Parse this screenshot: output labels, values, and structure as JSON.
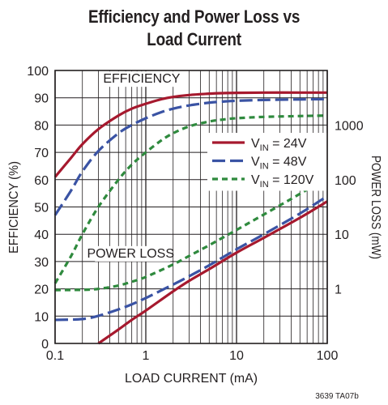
{
  "chart_data": {
    "type": "line",
    "title_line1": "Efficiency and Power Loss vs",
    "title_line2": "Load Current",
    "xlabel": "LOAD CURRENT (mA)",
    "ylabel_left": "EFFICIENCY (%)",
    "ylabel_right": "POWER LOSS (mW)",
    "x_scale": "log",
    "xlim": [
      0.1,
      100
    ],
    "ylim_left": [
      0,
      100
    ],
    "ylim_right_log": [
      0.1,
      10000
    ],
    "x_ticks": [
      {
        "value": 0.1,
        "label": "0.1"
      },
      {
        "value": 1,
        "label": "1"
      },
      {
        "value": 10,
        "label": "10"
      },
      {
        "value": 100,
        "label": "100"
      }
    ],
    "y_ticks_left": [
      0,
      10,
      20,
      30,
      40,
      50,
      60,
      70,
      80,
      90,
      100
    ],
    "y_ticks_right": [
      {
        "value": 1,
        "label": "1"
      },
      {
        "value": 10,
        "label": "10"
      },
      {
        "value": 100,
        "label": "100"
      },
      {
        "value": 1000,
        "label": "1000"
      }
    ],
    "grid": true,
    "annotations": [
      {
        "text": "EFFICIENCY",
        "x": 0.9,
        "y": 95.5,
        "axis": "left"
      },
      {
        "text": "POWER LOSS",
        "x": 0.68,
        "y": 31.5,
        "axis": "left"
      }
    ],
    "legend": {
      "placement": "right",
      "entries": [
        {
          "prefix": "V",
          "sub": "IN",
          "suffix": " = 24V",
          "color": "#a6192e",
          "dash": "solid"
        },
        {
          "prefix": "V",
          "sub": "IN",
          "suffix": " = 48V",
          "color": "#3a53a4",
          "dash": "long-dash"
        },
        {
          "prefix": "V",
          "sub": "IN",
          "suffix": " = 120V",
          "color": "#2f8a3e",
          "dash": "short-dash"
        }
      ]
    },
    "series": [
      {
        "name": "VIN = 24V (efficiency)",
        "axis": "left",
        "color": "#a6192e",
        "dash": "solid",
        "x": [
          0.1,
          0.15,
          0.2,
          0.3,
          0.5,
          0.7,
          1,
          1.5,
          2,
          3,
          5,
          7,
          10,
          20,
          50,
          100
        ],
        "y": [
          61,
          68,
          73,
          78.5,
          83.5,
          86,
          87.8,
          89.5,
          90.3,
          91,
          91.5,
          91.7,
          91.8,
          91.9,
          91.9,
          91.9
        ]
      },
      {
        "name": "VIN = 48V (efficiency)",
        "axis": "left",
        "color": "#3a53a4",
        "dash": "long-dash",
        "x": [
          0.1,
          0.15,
          0.2,
          0.3,
          0.5,
          0.7,
          1,
          1.5,
          2,
          3,
          5,
          7,
          10,
          20,
          50,
          100
        ],
        "y": [
          47,
          56,
          63,
          70.5,
          77,
          80,
          82.5,
          84.8,
          86,
          87.2,
          88.2,
          88.6,
          88.9,
          89.2,
          89.4,
          89.5
        ]
      },
      {
        "name": "VIN = 120V (efficiency)",
        "axis": "left",
        "color": "#2f8a3e",
        "dash": "short-dash",
        "x": [
          0.1,
          0.15,
          0.2,
          0.3,
          0.5,
          0.7,
          1,
          1.5,
          2,
          3,
          5,
          7,
          10,
          20,
          50,
          100
        ],
        "y": [
          22,
          32,
          40,
          50,
          60,
          65.5,
          70,
          74.5,
          77,
          79.5,
          81.3,
          82,
          82.5,
          83,
          83.3,
          83.5
        ]
      },
      {
        "name": "VIN = 24V (power loss)",
        "axis": "right",
        "color": "#a6192e",
        "dash": "solid",
        "x": [
          0.3,
          0.5,
          0.7,
          1,
          2,
          3,
          5,
          10,
          20,
          50,
          100
        ],
        "y": [
          0.1,
          0.18,
          0.27,
          0.4,
          0.9,
          1.4,
          2.3,
          4.6,
          8.6,
          20,
          40
        ]
      },
      {
        "name": "VIN = 48V (power loss)",
        "axis": "right",
        "color": "#3a53a4",
        "dash": "long-dash",
        "x": [
          0.1,
          0.2,
          0.3,
          0.5,
          0.7,
          1,
          2,
          3,
          5,
          10,
          20,
          50,
          100
        ],
        "y": [
          0.27,
          0.28,
          0.32,
          0.42,
          0.52,
          0.68,
          1.2,
          1.7,
          2.7,
          5.3,
          10,
          24,
          50
        ]
      },
      {
        "name": "VIN = 120V (power loss)",
        "axis": "right",
        "color": "#2f8a3e",
        "dash": "short-dash",
        "x": [
          0.1,
          0.2,
          0.3,
          0.5,
          0.7,
          1,
          2,
          3,
          5,
          10,
          20,
          50,
          100
        ],
        "y": [
          0.95,
          0.96,
          1.0,
          1.15,
          1.35,
          1.65,
          2.8,
          4,
          6.3,
          12,
          23,
          55,
          110
        ]
      }
    ],
    "footnote": "3639 TA07b"
  }
}
